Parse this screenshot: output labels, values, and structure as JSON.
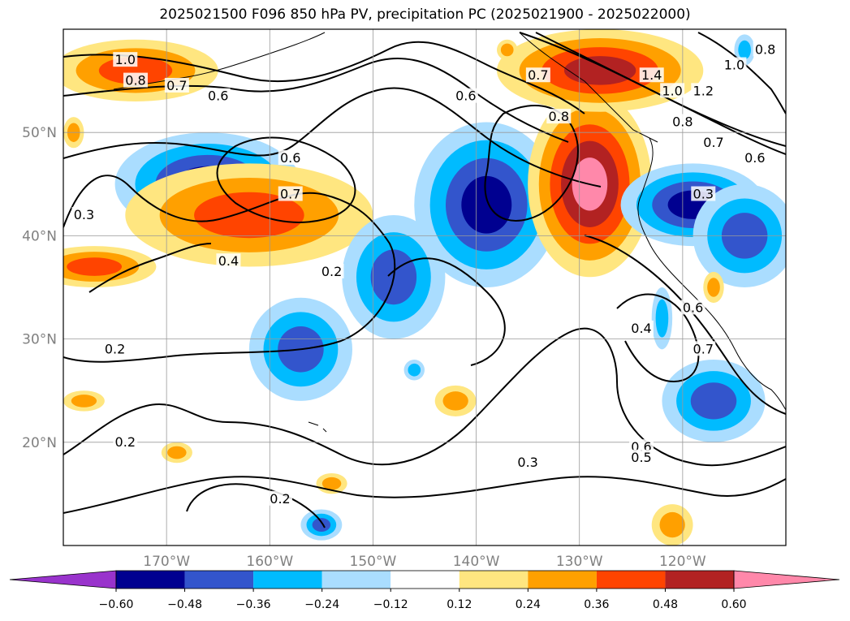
{
  "title": "2025021500 F096 850 hPa PV, precipitation PC (2025021900 - 2025022000)",
  "map": {
    "projection": "cylindrical",
    "lon_range": [
      -180,
      -110
    ],
    "lat_range": [
      10,
      60
    ],
    "grid": true,
    "lat_ticks": [
      {
        "value": 50,
        "label": "50°N"
      },
      {
        "value": 40,
        "label": "40°N"
      },
      {
        "value": 30,
        "label": "30°N"
      },
      {
        "value": 20,
        "label": "20°N"
      }
    ],
    "lon_ticks": [
      {
        "value": -170,
        "label": "170°W"
      },
      {
        "value": -160,
        "label": "160°W"
      },
      {
        "value": -150,
        "label": "150°W"
      },
      {
        "value": -140,
        "label": "140°W"
      },
      {
        "value": -130,
        "label": "130°W"
      },
      {
        "value": -120,
        "label": "120°W"
      }
    ]
  },
  "colors": {
    "lt-purple": "#9933cc",
    "navy": "#000090",
    "royal": "#3355cc",
    "sky": "#00bbff",
    "pale": "#aaddff",
    "yellow": "#ffe680",
    "orange": "#ffa000",
    "red": "#ff4400",
    "brick": "#b22222",
    "pink": "#ff88aa"
  },
  "colorbar": {
    "tick_labels": [
      "−0.60",
      "−0.48",
      "−0.36",
      "−0.24",
      "−0.12",
      "0.12",
      "0.24",
      "0.36",
      "0.48",
      "0.60"
    ],
    "bins": [
      "lt-purple",
      "navy",
      "royal",
      "sky",
      "pale",
      "white",
      "yellow",
      "orange",
      "red",
      "brick",
      "pink"
    ]
  },
  "precip_blobs": [
    {
      "lon": -173,
      "lat": 56,
      "rx": 8,
      "ry": 3,
      "level": "red"
    },
    {
      "lon": -166,
      "lat": 45,
      "rx": 9,
      "ry": 5,
      "level": "navy"
    },
    {
      "lon": -162,
      "lat": 42,
      "rx": 12,
      "ry": 5,
      "level": "red"
    },
    {
      "lon": -177,
      "lat": 37,
      "rx": 6,
      "ry": 2,
      "level": "red"
    },
    {
      "lon": -157,
      "lat": 29,
      "rx": 5,
      "ry": 5,
      "level": "royal"
    },
    {
      "lon": -148,
      "lat": 36,
      "rx": 5,
      "ry": 6,
      "level": "royal"
    },
    {
      "lon": -139,
      "lat": 43,
      "rx": 7,
      "ry": 8,
      "level": "navy"
    },
    {
      "lon": -129,
      "lat": 45,
      "rx": 6,
      "ry": 9,
      "level": "pink"
    },
    {
      "lon": -128,
      "lat": 56,
      "rx": 10,
      "ry": 4,
      "level": "brick"
    },
    {
      "lon": -119,
      "lat": 43,
      "rx": 7,
      "ry": 4,
      "level": "navy"
    },
    {
      "lon": -114,
      "lat": 40,
      "rx": 5,
      "ry": 5,
      "level": "royal"
    },
    {
      "lon": -117,
      "lat": 24,
      "rx": 5,
      "ry": 4,
      "level": "royal"
    },
    {
      "lon": -122,
      "lat": 32,
      "rx": 1,
      "ry": 3,
      "level": "sky"
    },
    {
      "lon": -117,
      "lat": 35,
      "rx": 1,
      "ry": 1.5,
      "level": "orange"
    },
    {
      "lon": -142,
      "lat": 24,
      "rx": 2,
      "ry": 1.5,
      "level": "orange"
    },
    {
      "lon": -178,
      "lat": 24,
      "rx": 2,
      "ry": 1,
      "level": "orange"
    },
    {
      "lon": -169,
      "lat": 19,
      "rx": 1.5,
      "ry": 1,
      "level": "orange"
    },
    {
      "lon": -154,
      "lat": 16,
      "rx": 1.5,
      "ry": 1,
      "level": "orange"
    },
    {
      "lon": -155,
      "lat": 12,
      "rx": 2,
      "ry": 1.5,
      "level": "royal"
    },
    {
      "lon": -121,
      "lat": 12,
      "rx": 2,
      "ry": 2,
      "level": "orange"
    },
    {
      "lon": -137,
      "lat": 58,
      "rx": 1,
      "ry": 1,
      "level": "orange"
    },
    {
      "lon": -146,
      "lat": 27,
      "rx": 1,
      "ry": 1,
      "level": "sky"
    },
    {
      "lon": -114,
      "lat": 58,
      "rx": 1,
      "ry": 1.5,
      "level": "sky"
    },
    {
      "lon": -179,
      "lat": 50,
      "rx": 1,
      "ry": 1.5,
      "level": "orange"
    }
  ],
  "contour_labels": [
    {
      "lon": -174,
      "lat": 57,
      "text": "1.0"
    },
    {
      "lon": -173,
      "lat": 55,
      "text": "0.8"
    },
    {
      "lon": -169,
      "lat": 54.5,
      "text": "0.7"
    },
    {
      "lon": -165,
      "lat": 53.5,
      "text": "0.6"
    },
    {
      "lon": -141,
      "lat": 53.5,
      "text": "0.6"
    },
    {
      "lon": -134,
      "lat": 55.5,
      "text": "0.7"
    },
    {
      "lon": -132,
      "lat": 51.5,
      "text": "0.8"
    },
    {
      "lon": -158,
      "lat": 47.5,
      "text": "0.6"
    },
    {
      "lon": -158,
      "lat": 44,
      "text": "0.7"
    },
    {
      "lon": -178,
      "lat": 42,
      "text": "0.3"
    },
    {
      "lon": -164,
      "lat": 37.5,
      "text": "0.4"
    },
    {
      "lon": -154,
      "lat": 36.5,
      "text": "0.2"
    },
    {
      "lon": -175,
      "lat": 29,
      "text": "0.2"
    },
    {
      "lon": -174,
      "lat": 20,
      "text": "0.2"
    },
    {
      "lon": -159,
      "lat": 14.5,
      "text": "0.2"
    },
    {
      "lon": -135,
      "lat": 18,
      "text": "0.3"
    },
    {
      "lon": -124,
      "lat": 19.5,
      "text": "0.6"
    },
    {
      "lon": -124,
      "lat": 18.5,
      "text": "0.5"
    },
    {
      "lon": -124,
      "lat": 31,
      "text": "0.4"
    },
    {
      "lon": -119,
      "lat": 33,
      "text": "0.6"
    },
    {
      "lon": -118,
      "lat": 29,
      "text": "0.7"
    },
    {
      "lon": -123,
      "lat": 55.5,
      "text": "1.4"
    },
    {
      "lon": -121,
      "lat": 54,
      "text": "1.0"
    },
    {
      "lon": -118,
      "lat": 54,
      "text": "1.2"
    },
    {
      "lon": -115,
      "lat": 56.5,
      "text": "1.0"
    },
    {
      "lon": -112,
      "lat": 58,
      "text": "0.8"
    },
    {
      "lon": -120,
      "lat": 51,
      "text": "0.8"
    },
    {
      "lon": -117,
      "lat": 49,
      "text": "0.7"
    },
    {
      "lon": -113,
      "lat": 47.5,
      "text": "0.6"
    },
    {
      "lon": -118,
      "lat": 44,
      "text": "0.3"
    }
  ]
}
